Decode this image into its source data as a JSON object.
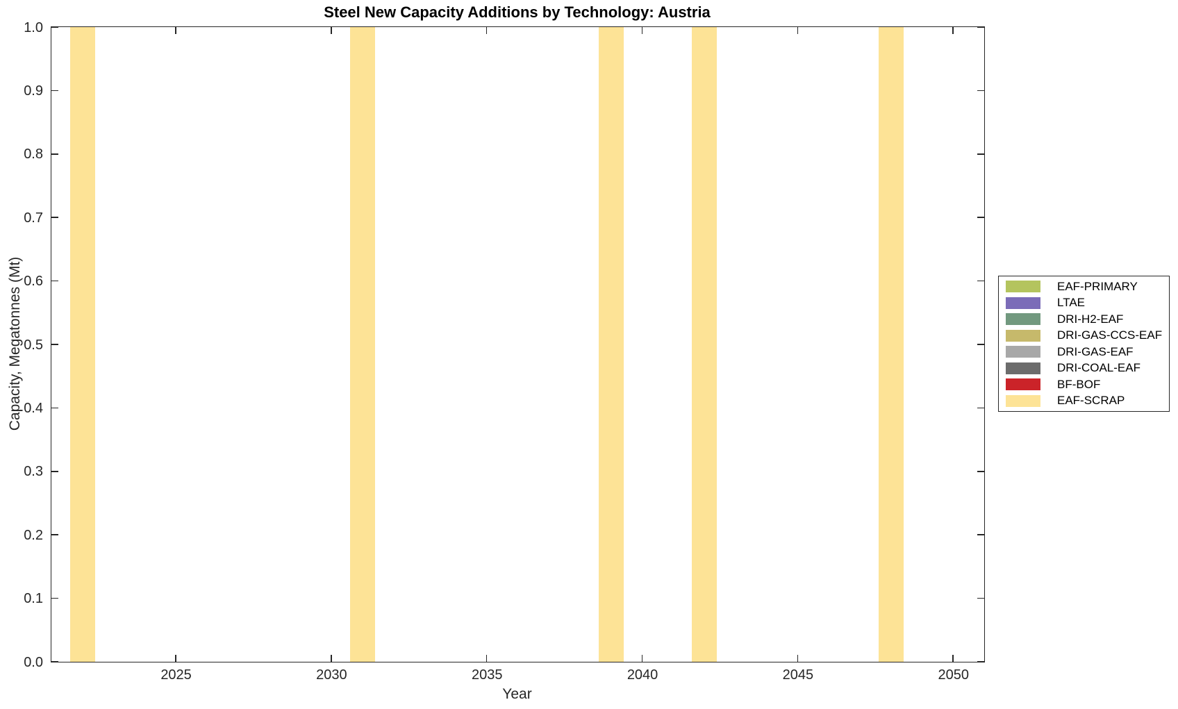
{
  "window": {
    "background": "#ffffff"
  },
  "chart_data": {
    "type": "bar",
    "title": "Steel New Capacity Additions by Technology: Austria",
    "xlabel": "Year",
    "ylabel": "Capacity, Megatonnes (Mt)",
    "xlim": [
      2021,
      2051
    ],
    "ylim": [
      0.0,
      1.0
    ],
    "x_ticks": [
      2025,
      2030,
      2035,
      2040,
      2045,
      2050
    ],
    "y_ticks": [
      0.0,
      0.1,
      0.2,
      0.3,
      0.4,
      0.5,
      0.6,
      0.7,
      0.8,
      0.9,
      1.0
    ],
    "grid": false,
    "bar_width_years": 0.8,
    "bars_reach_axis_top": true,
    "axis_color": "#262626",
    "legend_position": "outside-right",
    "series": [
      {
        "name": "EAF-PRIMARY",
        "color": "#b4c45e",
        "points": []
      },
      {
        "name": "LTAE",
        "color": "#7b6cb8",
        "points": []
      },
      {
        "name": "DRI-H2-EAF",
        "color": "#72997f",
        "points": []
      },
      {
        "name": "DRI-GAS-CCS-EAF",
        "color": "#c6b96b",
        "points": []
      },
      {
        "name": "DRI-GAS-EAF",
        "color": "#a8a8a8",
        "points": []
      },
      {
        "name": "DRI-COAL-EAF",
        "color": "#6c6c6c",
        "points": []
      },
      {
        "name": "BF-BOF",
        "color": "#cb2329",
        "points": []
      },
      {
        "name": "EAF-SCRAP",
        "color": "#fde396",
        "points": [
          {
            "x": 2022,
            "y": 1.0
          },
          {
            "x": 2031,
            "y": 1.0
          },
          {
            "x": 2039,
            "y": 1.0
          },
          {
            "x": 2042,
            "y": 1.0
          },
          {
            "x": 2048,
            "y": 1.0
          }
        ]
      }
    ]
  }
}
